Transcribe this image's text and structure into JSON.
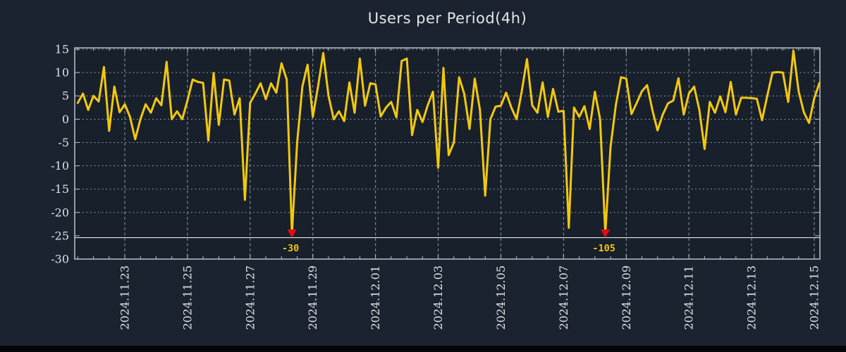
{
  "chart_data": {
    "type": "line",
    "title": "Users per Period(4h)",
    "xlabel": "",
    "ylabel": "",
    "legend": "none",
    "grid": true,
    "ylim": [
      -30,
      15
    ],
    "y_ticks": [
      15,
      10,
      5,
      0,
      -5,
      -10,
      -15,
      -20,
      -25,
      -30
    ],
    "x_tick_labels": [
      "2024.11.23",
      "2024.11.25",
      "2024.11.27",
      "2024.11.29",
      "2024.12.01",
      "2024.12.03",
      "2024.12.05",
      "2024.12.07",
      "2024.12.09",
      "2024.12.11",
      "2024.12.13",
      "2024.12.15"
    ],
    "x_tick_point_indices": [
      9,
      21,
      33,
      45,
      57,
      69,
      81,
      93,
      105,
      117,
      129,
      141
    ],
    "sample_period": "4h",
    "points_per_day": 6,
    "series": [
      {
        "name": "users",
        "color": "#f2c80e",
        "values": [
          3.5,
          5.5,
          2.0,
          5.0,
          3.8,
          11.2,
          -2.5,
          7.0,
          1.5,
          3.2,
          0.5,
          -4.3,
          0.0,
          3.2,
          1.4,
          4.5,
          3.0,
          12.3,
          0.0,
          1.7,
          0.0,
          4.0,
          8.5,
          8.0,
          7.8,
          -4.6,
          9.9,
          -1.2,
          8.5,
          8.3,
          1.0,
          4.5,
          -17.3,
          3.5,
          5.5,
          7.7,
          4.3,
          7.7,
          5.7,
          12.0,
          8.5,
          -30.0,
          -5.0,
          7.0,
          11.7,
          0.5,
          7.0,
          14.2,
          5.0,
          0.0,
          1.7,
          -0.4,
          7.9,
          1.4,
          13.0,
          2.9,
          7.7,
          7.5,
          0.6,
          2.5,
          3.7,
          0.4,
          12.5,
          13.0,
          -3.4,
          2.0,
          -0.6,
          3.0,
          5.9,
          -10.4,
          11.0,
          -7.7,
          -5.0,
          9.0,
          5.4,
          -2.1,
          8.7,
          2.0,
          -16.4,
          0.0,
          2.7,
          2.9,
          5.7,
          2.5,
          0.0,
          6.0,
          12.9,
          3.0,
          1.4,
          7.9,
          0.5,
          6.5,
          1.6,
          1.8,
          -23.3,
          2.5,
          0.5,
          2.8,
          -2.1,
          5.9,
          0.0,
          -105.0,
          -6.0,
          3.0,
          9.0,
          8.7,
          1.1,
          3.5,
          6.0,
          7.3,
          2.0,
          -2.4,
          1.0,
          3.4,
          4.0,
          8.8,
          1.0,
          5.5,
          7.0,
          2.0,
          -6.4,
          3.7,
          1.4,
          4.9,
          1.5,
          8.0,
          1.0,
          4.6,
          4.6,
          4.5,
          4.4,
          -0.2,
          5.0,
          10.0,
          10.1,
          10.0,
          3.7,
          14.7,
          6.0,
          1.5,
          -0.8,
          4.5,
          7.8
        ]
      }
    ],
    "threshold_line": {
      "value": -25.4,
      "color": "#e2e6ea"
    },
    "annotations": [
      {
        "point_index": 41,
        "label": "-30",
        "value": -30,
        "marker": "red-down-arrow"
      },
      {
        "point_index": 101,
        "label": "-105",
        "value": -105,
        "marker": "red-down-arrow"
      }
    ],
    "colors": {
      "background": "#1b2330",
      "plot_background": "#18202c",
      "line": "#f2c80e",
      "grid": "#8e98a2",
      "axis": "#b9c1c9",
      "tick_labels": "#dce1e6",
      "title": "#e3e7ea",
      "annotation_text": "#f2c80e",
      "annotation_marker": "#e60b12",
      "bottom_bar": "#05070a"
    }
  }
}
